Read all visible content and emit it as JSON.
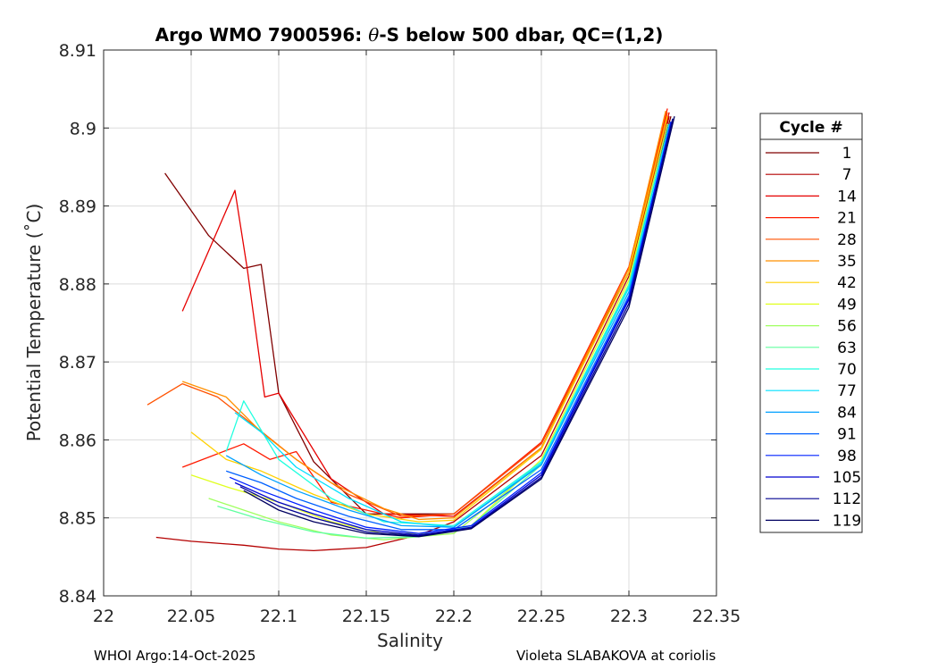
{
  "chart_data": {
    "type": "line",
    "title": "Argo WMO 7900596: θ-S below 500 dbar,  QC=(1,2)",
    "title_parts": {
      "prefix": "Argo WMO 7900596: ",
      "theta": "θ",
      "suffix": "-S below 500 dbar,  QC=(1,2)"
    },
    "xlabel": "Salinity",
    "ylabel": "Potential Temperature (˚C)",
    "xlim": [
      22.0,
      22.35
    ],
    "ylim": [
      8.84,
      8.91
    ],
    "xticks": [
      22.0,
      22.05,
      22.1,
      22.15,
      22.2,
      22.25,
      22.3,
      22.35
    ],
    "xtick_labels": [
      "22",
      "22.05",
      "22.1",
      "22.15",
      "22.2",
      "22.25",
      "22.3",
      "22.35"
    ],
    "yticks": [
      8.84,
      8.85,
      8.86,
      8.87,
      8.88,
      8.89,
      8.9,
      8.91
    ],
    "ytick_labels": [
      "8.84",
      "8.85",
      "8.86",
      "8.87",
      "8.88",
      "8.89",
      "8.9",
      "8.91"
    ],
    "grid": true,
    "legend_title": "Cycle #",
    "legend_position": "outside-right",
    "legend": [
      {
        "label": "1",
        "color": "#800000"
      },
      {
        "label": "7",
        "color": "#b40000"
      },
      {
        "label": "14",
        "color": "#e60000"
      },
      {
        "label": "21",
        "color": "#ff1a00"
      },
      {
        "label": "28",
        "color": "#ff5200"
      },
      {
        "label": "35",
        "color": "#ff9000"
      },
      {
        "label": "42",
        "color": "#ffd000"
      },
      {
        "label": "49",
        "color": "#e0ff1f"
      },
      {
        "label": "56",
        "color": "#a0ff60"
      },
      {
        "label": "63",
        "color": "#60ff9f"
      },
      {
        "label": "70",
        "color": "#20ffdf"
      },
      {
        "label": "77",
        "color": "#00e0ff"
      },
      {
        "label": "84",
        "color": "#00a0ff"
      },
      {
        "label": "91",
        "color": "#0060ff"
      },
      {
        "label": "98",
        "color": "#0020ff"
      },
      {
        "label": "105",
        "color": "#0000d0"
      },
      {
        "label": "112",
        "color": "#000090"
      },
      {
        "label": "119",
        "color": "#000060"
      }
    ],
    "series": [
      {
        "name": "1",
        "color": "#800000",
        "x": [
          22.035,
          22.06,
          22.08,
          22.09,
          22.1,
          22.12,
          22.15,
          22.2,
          22.25,
          22.3,
          22.324
        ],
        "y": [
          8.8942,
          8.8862,
          8.882,
          8.8825,
          8.866,
          8.8572,
          8.8505,
          8.8505,
          8.8595,
          8.8815,
          8.9015
        ]
      },
      {
        "name": "7",
        "color": "#b40000",
        "x": [
          22.03,
          22.05,
          22.08,
          22.1,
          22.12,
          22.15,
          22.18,
          22.2,
          22.25,
          22.3,
          22.323
        ],
        "y": [
          8.8475,
          8.847,
          8.8465,
          8.846,
          8.8458,
          8.8462,
          8.8478,
          8.8495,
          8.858,
          8.881,
          8.9015
        ]
      },
      {
        "name": "14",
        "color": "#e60000",
        "x": [
          22.045,
          22.075,
          22.082,
          22.092,
          22.1,
          22.13,
          22.16,
          22.2,
          22.25,
          22.3,
          22.323
        ],
        "y": [
          8.8765,
          8.892,
          8.882,
          8.8655,
          8.866,
          8.855,
          8.8505,
          8.8502,
          8.859,
          8.8815,
          8.902
        ]
      },
      {
        "name": "21",
        "color": "#ff1a00",
        "x": [
          22.045,
          22.08,
          22.095,
          22.11,
          22.13,
          22.15,
          22.17,
          22.2,
          22.25,
          22.3,
          22.322
        ],
        "y": [
          8.8565,
          8.8595,
          8.8575,
          8.8585,
          8.852,
          8.851,
          8.85,
          8.8505,
          8.8597,
          8.8822,
          8.9025
        ]
      },
      {
        "name": "28",
        "color": "#ff5200",
        "x": [
          22.025,
          22.045,
          22.065,
          22.085,
          22.11,
          22.14,
          22.17,
          22.2,
          22.25,
          22.3,
          22.322
        ],
        "y": [
          8.8645,
          8.8672,
          8.8655,
          8.862,
          8.8575,
          8.853,
          8.8502,
          8.8505,
          8.8595,
          8.882,
          8.902
        ]
      },
      {
        "name": "35",
        "color": "#ff9000",
        "x": [
          22.045,
          22.07,
          22.09,
          22.11,
          22.13,
          22.16,
          22.18,
          22.2,
          22.25,
          22.3,
          22.321
        ],
        "y": [
          8.8675,
          8.8655,
          8.861,
          8.8575,
          8.8545,
          8.8512,
          8.8498,
          8.85,
          8.859,
          8.882,
          8.9022
        ]
      },
      {
        "name": "42",
        "color": "#ffd000",
        "x": [
          22.05,
          22.07,
          22.09,
          22.12,
          22.15,
          22.18,
          22.2,
          22.25,
          22.3,
          22.322
        ],
        "y": [
          8.861,
          8.8575,
          8.856,
          8.853,
          8.8505,
          8.8495,
          8.8497,
          8.8588,
          8.8815,
          8.9015
        ]
      },
      {
        "name": "49",
        "color": "#e0ff1f",
        "x": [
          22.05,
          22.07,
          22.1,
          22.13,
          22.16,
          22.19,
          22.21,
          22.25,
          22.3,
          22.322
        ],
        "y": [
          8.8555,
          8.854,
          8.852,
          8.8495,
          8.848,
          8.848,
          8.849,
          8.8575,
          8.8805,
          8.9005
        ]
      },
      {
        "name": "56",
        "color": "#a0ff60",
        "x": [
          22.06,
          22.08,
          22.1,
          22.13,
          22.16,
          22.2,
          22.25,
          22.3,
          22.322
        ],
        "y": [
          8.8525,
          8.851,
          8.8495,
          8.8478,
          8.8472,
          8.848,
          8.857,
          8.88,
          8.9005
        ]
      },
      {
        "name": "63",
        "color": "#60ff9f",
        "x": [
          22.065,
          22.09,
          22.12,
          22.15,
          22.18,
          22.21,
          22.25,
          22.3,
          22.323
        ],
        "y": [
          8.8515,
          8.8498,
          8.8482,
          8.8474,
          8.8476,
          8.849,
          8.8568,
          8.8798,
          8.9003
        ]
      },
      {
        "name": "70",
        "color": "#20ffdf",
        "x": [
          22.07,
          22.08,
          22.1,
          22.13,
          22.16,
          22.2,
          22.25,
          22.3,
          22.323
        ],
        "y": [
          8.8585,
          8.865,
          8.8575,
          8.8525,
          8.8495,
          8.849,
          8.8572,
          8.8798,
          8.9005
        ]
      },
      {
        "name": "77",
        "color": "#00e0ff",
        "x": [
          22.075,
          22.09,
          22.11,
          22.14,
          22.17,
          22.2,
          22.25,
          22.3,
          22.323
        ],
        "y": [
          8.8635,
          8.861,
          8.8565,
          8.8525,
          8.8495,
          8.8488,
          8.857,
          8.8795,
          8.9005
        ]
      },
      {
        "name": "84",
        "color": "#00a0ff",
        "x": [
          22.07,
          22.09,
          22.11,
          22.14,
          22.17,
          22.2,
          22.25,
          22.3,
          22.324
        ],
        "y": [
          8.858,
          8.8555,
          8.8535,
          8.851,
          8.849,
          8.8488,
          8.8568,
          8.879,
          8.9005
        ]
      },
      {
        "name": "91",
        "color": "#0060ff",
        "x": [
          22.07,
          22.09,
          22.11,
          22.14,
          22.17,
          22.2,
          22.25,
          22.3,
          22.324
        ],
        "y": [
          8.856,
          8.8545,
          8.8525,
          8.8502,
          8.8485,
          8.8485,
          8.8562,
          8.8785,
          8.9008
        ]
      },
      {
        "name": "98",
        "color": "#0020ff",
        "x": [
          22.072,
          22.09,
          22.12,
          22.15,
          22.18,
          22.21,
          22.25,
          22.3,
          22.324
        ],
        "y": [
          8.8552,
          8.8535,
          8.851,
          8.8488,
          8.848,
          8.849,
          8.8558,
          8.8782,
          8.9008
        ]
      },
      {
        "name": "105",
        "color": "#0000d0",
        "x": [
          22.075,
          22.1,
          22.12,
          22.15,
          22.18,
          22.21,
          22.25,
          22.3,
          22.325
        ],
        "y": [
          8.8545,
          8.852,
          8.8505,
          8.8485,
          8.8478,
          8.8488,
          8.8555,
          8.878,
          8.901
        ]
      },
      {
        "name": "112",
        "color": "#000090",
        "x": [
          22.078,
          22.1,
          22.12,
          22.15,
          22.18,
          22.21,
          22.25,
          22.3,
          22.325
        ],
        "y": [
          8.854,
          8.8515,
          8.85,
          8.8482,
          8.8477,
          8.8487,
          8.8552,
          8.8775,
          8.9012
        ]
      },
      {
        "name": "119",
        "color": "#000060",
        "x": [
          22.08,
          22.1,
          22.12,
          22.15,
          22.18,
          22.21,
          22.25,
          22.3,
          22.326
        ],
        "y": [
          8.8535,
          8.851,
          8.8495,
          8.848,
          8.8476,
          8.8486,
          8.855,
          8.877,
          8.9015
        ]
      }
    ]
  },
  "footer": {
    "left": "WHOI Argo:14-Oct-2025",
    "right": "Violeta SLABAKOVA at coriolis"
  }
}
